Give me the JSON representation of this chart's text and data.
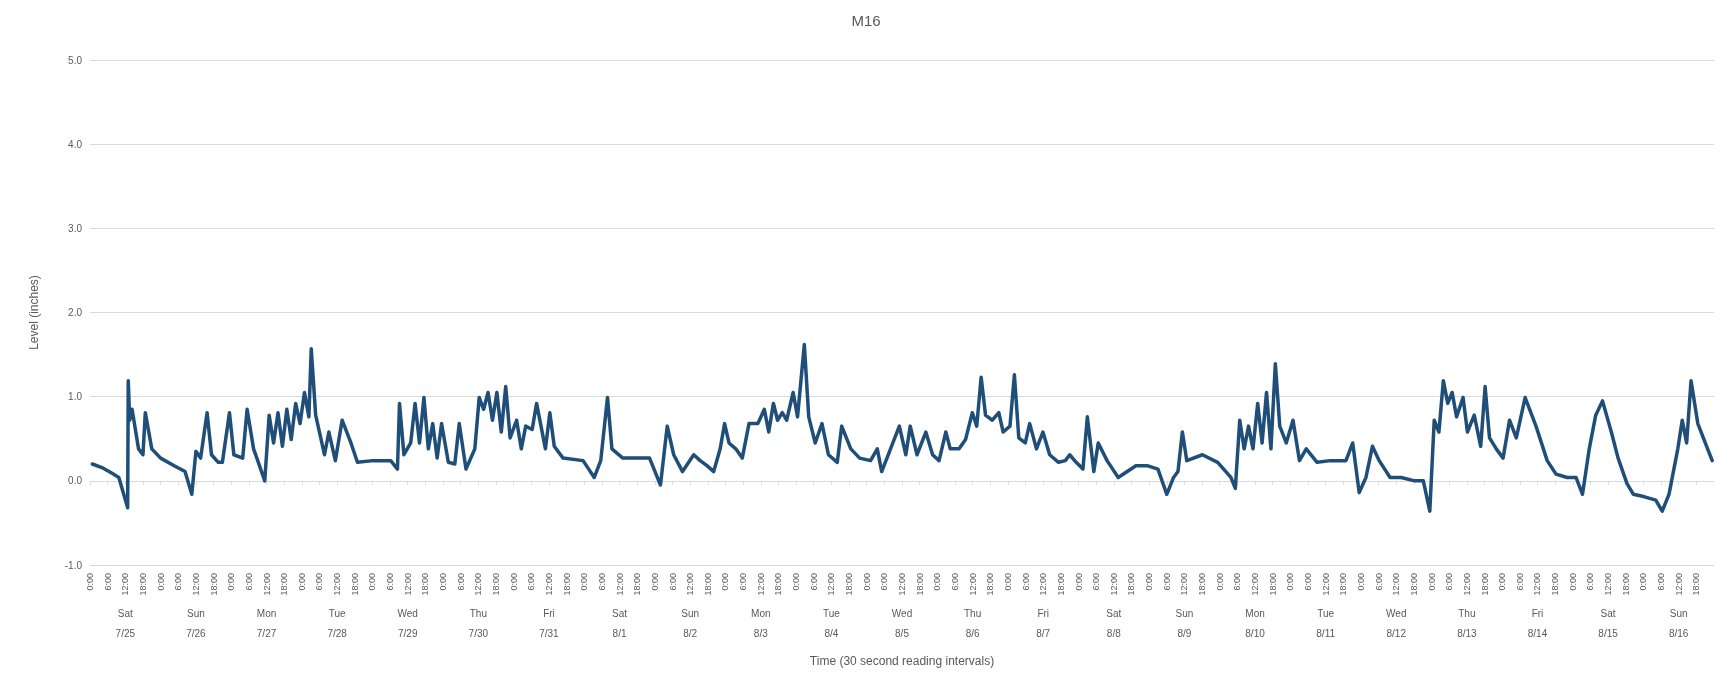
{
  "chart_data": {
    "type": "line",
    "title": "M16",
    "xlabel": "Time (30 second reading intervals)",
    "ylabel": "Level (inches)",
    "xlim": [
      "--07-25T00:00",
      "--08-17T00:00"
    ],
    "ylim": [
      -1,
      5
    ],
    "yticks": [
      {
        "value": -1,
        "label": "-1.0"
      },
      {
        "value": 0,
        "label": "0.0"
      },
      {
        "value": 1,
        "label": "1.0"
      },
      {
        "value": 2,
        "label": "2.0"
      },
      {
        "value": 3,
        "label": "3.0"
      },
      {
        "value": 4,
        "label": "4.0"
      },
      {
        "value": 5,
        "label": "5.0"
      }
    ],
    "xticks": [
      {
        "value": "--07-25T00:00",
        "label": "0:00"
      },
      {
        "value": "--07-25T06:00",
        "label": "6:00"
      },
      {
        "value": "--07-25T12:00",
        "label": "12:00"
      },
      {
        "value": "--07-25T18:00",
        "label": "18:00"
      },
      {
        "value": "--07-26T00:00",
        "label": "0:00"
      },
      {
        "value": "--07-26T06:00",
        "label": "6:00"
      },
      {
        "value": "--07-26T12:00",
        "label": "12:00"
      },
      {
        "value": "--07-26T18:00",
        "label": "18:00"
      },
      {
        "value": "--07-27T00:00",
        "label": "0:00"
      },
      {
        "value": "--07-27T06:00",
        "label": "6:00"
      },
      {
        "value": "--07-27T12:00",
        "label": "12:00"
      },
      {
        "value": "--07-27T18:00",
        "label": "18:00"
      },
      {
        "value": "--07-28T00:00",
        "label": "0:00"
      },
      {
        "value": "--07-28T06:00",
        "label": "6:00"
      },
      {
        "value": "--07-28T12:00",
        "label": "12:00"
      },
      {
        "value": "--07-28T18:00",
        "label": "18:00"
      },
      {
        "value": "--07-29T00:00",
        "label": "0:00"
      },
      {
        "value": "--07-29T06:00",
        "label": "6:00"
      },
      {
        "value": "--07-29T12:00",
        "label": "12:00"
      },
      {
        "value": "--07-29T18:00",
        "label": "18:00"
      },
      {
        "value": "--07-30T00:00",
        "label": "0:00"
      },
      {
        "value": "--07-30T06:00",
        "label": "6:00"
      },
      {
        "value": "--07-30T12:00",
        "label": "12:00"
      },
      {
        "value": "--07-30T18:00",
        "label": "18:00"
      },
      {
        "value": "--07-31T00:00",
        "label": "0:00"
      },
      {
        "value": "--07-31T06:00",
        "label": "6:00"
      },
      {
        "value": "--07-31T12:00",
        "label": "12:00"
      },
      {
        "value": "--07-31T18:00",
        "label": "18:00"
      },
      {
        "value": "--08-01T00:00",
        "label": "0:00"
      },
      {
        "value": "--08-01T06:00",
        "label": "6:00"
      },
      {
        "value": "--08-01T12:00",
        "label": "12:00"
      },
      {
        "value": "--08-01T18:00",
        "label": "18:00"
      },
      {
        "value": "--08-02T00:00",
        "label": "0:00"
      },
      {
        "value": "--08-02T06:00",
        "label": "6:00"
      },
      {
        "value": "--08-02T12:00",
        "label": "12:00"
      },
      {
        "value": "--08-02T18:00",
        "label": "18:00"
      },
      {
        "value": "--08-03T00:00",
        "label": "0:00"
      },
      {
        "value": "--08-03T06:00",
        "label": "6:00"
      },
      {
        "value": "--08-03T12:00",
        "label": "12:00"
      },
      {
        "value": "--08-03T18:00",
        "label": "18:00"
      },
      {
        "value": "--08-04T00:00",
        "label": "0:00"
      },
      {
        "value": "--08-04T06:00",
        "label": "6:00"
      },
      {
        "value": "--08-04T12:00",
        "label": "12:00"
      },
      {
        "value": "--08-04T18:00",
        "label": "18:00"
      },
      {
        "value": "--08-05T00:00",
        "label": "0:00"
      },
      {
        "value": "--08-05T06:00",
        "label": "6:00"
      },
      {
        "value": "--08-05T12:00",
        "label": "12:00"
      },
      {
        "value": "--08-05T18:00",
        "label": "18:00"
      },
      {
        "value": "--08-06T00:00",
        "label": "0:00"
      },
      {
        "value": "--08-06T06:00",
        "label": "6:00"
      },
      {
        "value": "--08-06T12:00",
        "label": "12:00"
      },
      {
        "value": "--08-06T18:00",
        "label": "18:00"
      },
      {
        "value": "--08-07T00:00",
        "label": "0:00"
      },
      {
        "value": "--08-07T06:00",
        "label": "6:00"
      },
      {
        "value": "--08-07T12:00",
        "label": "12:00"
      },
      {
        "value": "--08-07T18:00",
        "label": "18:00"
      },
      {
        "value": "--08-08T00:00",
        "label": "0:00"
      },
      {
        "value": "--08-08T06:00",
        "label": "6:00"
      },
      {
        "value": "--08-08T12:00",
        "label": "12:00"
      },
      {
        "value": "--08-08T18:00",
        "label": "18:00"
      },
      {
        "value": "--08-09T00:00",
        "label": "0:00"
      },
      {
        "value": "--08-09T06:00",
        "label": "6:00"
      },
      {
        "value": "--08-09T12:00",
        "label": "12:00"
      },
      {
        "value": "--08-09T18:00",
        "label": "18:00"
      },
      {
        "value": "--08-10T00:00",
        "label": "0:00"
      },
      {
        "value": "--08-10T06:00",
        "label": "6:00"
      },
      {
        "value": "--08-10T12:00",
        "label": "12:00"
      },
      {
        "value": "--08-10T18:00",
        "label": "18:00"
      },
      {
        "value": "--08-11T00:00",
        "label": "0:00"
      },
      {
        "value": "--08-11T06:00",
        "label": "6:00"
      },
      {
        "value": "--08-11T12:00",
        "label": "12:00"
      },
      {
        "value": "--08-11T18:00",
        "label": "18:00"
      },
      {
        "value": "--08-12T00:00",
        "label": "0:00"
      },
      {
        "value": "--08-12T06:00",
        "label": "6:00"
      },
      {
        "value": "--08-12T12:00",
        "label": "12:00"
      },
      {
        "value": "--08-12T18:00",
        "label": "18:00"
      },
      {
        "value": "--08-13T00:00",
        "label": "0:00"
      },
      {
        "value": "--08-13T06:00",
        "label": "6:00"
      },
      {
        "value": "--08-13T12:00",
        "label": "12:00"
      },
      {
        "value": "--08-13T18:00",
        "label": "18:00"
      },
      {
        "value": "--08-14T00:00",
        "label": "0:00"
      },
      {
        "value": "--08-14T06:00",
        "label": "6:00"
      },
      {
        "value": "--08-14T12:00",
        "label": "12:00"
      },
      {
        "value": "--08-14T18:00",
        "label": "18:00"
      },
      {
        "value": "--08-15T00:00",
        "label": "0:00"
      },
      {
        "value": "--08-15T06:00",
        "label": "6:00"
      },
      {
        "value": "--08-15T12:00",
        "label": "12:00"
      },
      {
        "value": "--08-15T18:00",
        "label": "18:00"
      },
      {
        "value": "--08-16T00:00",
        "label": "0:00"
      },
      {
        "value": "--08-16T06:00",
        "label": "6:00"
      },
      {
        "value": "--08-16T12:00",
        "label": "12:00"
      },
      {
        "value": "--08-16T18:00",
        "label": "18:00"
      }
    ],
    "annotations": [
      "Sat",
      "7/25",
      "Sun",
      "7/26",
      "Mon",
      "7/27",
      "Tue",
      "7/28",
      "Wed",
      "7/29",
      "Thu",
      "7/30",
      "Fri",
      "7/31",
      "Sat",
      "8/1",
      "Sun",
      "8/2",
      "Mon",
      "8/3",
      "Tue",
      "8/4",
      "Wed",
      "8/5",
      "Thu",
      "8/6",
      "Fri",
      "8/7",
      "Sat",
      "8/8",
      "Sun",
      "8/9",
      "Mon",
      "8/10",
      "Tue",
      "8/11",
      "Wed",
      "8/12",
      "Thu",
      "8/13",
      "Fri",
      "8/14",
      "Sat",
      "8/15",
      "Sun",
      "8/16"
    ],
    "grid": "y",
    "marker": "none",
    "line_style": "solid",
    "series": [
      {
        "color": "#1f4e79",
        "x": [
          "--07-25T00:48",
          "--07-25T04:30",
          "--07-25T07:30",
          "--07-25T09:48",
          "--07-25T12:48",
          "--07-25T13:00",
          "--07-25T13:30",
          "--07-25T14:18",
          "--07-25T16:30",
          "--07-25T18:00",
          "--07-25T18:48",
          "--07-25T21:00",
          "--07-26T00:00",
          "--07-26T04:36",
          "--07-26T08:18",
          "--07-26T10:36",
          "--07-26T12:00",
          "--07-26T13:36",
          "--07-26T15:48",
          "--07-26T17:18",
          "--07-26T19:36",
          "--07-26T21:00",
          "--07-26T23:24",
          "--07-27T00:54",
          "--07-27T03:54",
          "--07-27T05:24",
          "--07-27T07:36",
          "--07-27T11:24",
          "--07-27T12:54",
          "--07-27T14:24",
          "--07-27T15:54",
          "--07-27T17:24",
          "--07-27T18:54",
          "--07-27T20:24",
          "--07-27T21:54",
          "--07-27T23:24",
          "--07-28T00:54",
          "--07-28T02:24",
          "--07-28T03:12",
          "--07-28T04:42",
          "--07-28T07:42",
          "--07-28T09:12",
          "--07-28T11:24",
          "--07-28T13:42",
          "--07-28T16:42",
          "--07-28T18:54",
          "--07-29T00:12",
          "--07-29T06:12",
          "--07-29T08:30",
          "--07-29T09:12",
          "--07-29T10:42",
          "--07-29T13:00",
          "--07-29T14:30",
          "--07-29T16:00",
          "--07-29T17:30",
          "--07-29T19:00",
          "--07-29T20:30",
          "--07-29T22:00",
          "--07-29T23:30",
          "--07-30T01:48",
          "--07-30T04:00",
          "--07-30T05:30",
          "--07-30T07:48",
          "--07-30T10:48",
          "--07-30T12:18",
          "--07-30T13:48",
          "--07-30T15:18",
          "--07-30T16:48",
          "--07-30T18:18",
          "--07-30T19:48",
          "--07-30T21:18",
          "--07-30T22:48",
          "--07-31T01:00",
          "--07-31T02:36",
          "--07-31T04:06",
          "--07-31T06:18",
          "--07-31T07:48",
          "--07-31T10:48",
          "--07-31T12:18",
          "--07-31T13:48",
          "--07-31T16:48",
          "--07-31T23:36",
          "--08-01T03:24",
          "--08-01T05:36",
          "--08-01T07:54",
          "--08-01T09:24",
          "--08-01T13:06",
          "--08-01T22:12",
          "--08-02T01:54",
          "--08-02T04:12",
          "--08-02T06:24",
          "--08-02T09:24",
          "--08-02T13:12",
          "--08-02T15:24",
          "--08-02T17:42",
          "--08-02T20:00",
          "--08-02T22:12",
          "--08-02T23:42",
          "--08-03T01:12",
          "--08-03T03:30",
          "--08-03T05:42",
          "--08-03T08:00",
          "--08-03T11:00",
          "--08-03T13:12",
          "--08-03T14:42",
          "--08-03T16:18",
          "--08-03T17:42",
          "--08-03T19:18",
          "--08-03T20:48",
          "--08-03T23:00",
          "--08-04T00:30",
          "--08-04T02:48",
          "--08-04T04:18",
          "--08-04T06:30",
          "--08-04T08:48",
          "--08-04T11:00",
          "--08-04T14:00",
          "--08-04T15:30",
          "--08-04T18:36",
          "--08-04T21:36",
          "--08-05T01:18",
          "--08-05T03:36",
          "--08-05T05:06",
          "--08-05T08:06",
          "--08-05T11:06",
          "--08-05T13:18",
          "--08-05T14:48",
          "--08-05T17:06",
          "--08-05T20:06",
          "--08-05T22:24",
          "--08-06T00:36",
          "--08-06T02:54",
          "--08-06T04:24",
          "--08-06T07:24",
          "--08-06T09:36",
          "--08-06T11:54",
          "--08-06T13:24",
          "--08-06T14:54",
          "--08-06T16:24",
          "--08-06T18:42",
          "--08-06T20:54",
          "--08-06T22:24",
          "--08-07T00:42",
          "--08-07T02:12",
          "--08-07T03:42",
          "--08-07T05:54",
          "--08-07T07:24",
          "--08-07T09:42",
          "--08-07T11:54",
          "--08-07T14:12",
          "--08-07T17:12",
          "--08-07T19:30",
          "--08-07T21:00",
          "--08-07T23:12",
          "--08-08T01:30",
          "--08-08T03:00",
          "--08-08T05:12",
          "--08-08T06:42",
          "--08-08T09:42",
          "--08-08T13:30",
          "--08-08T19:30",
          "--08-08T23:18",
          "--08-09T03:00",
          "--08-09T06:00",
          "--08-09T08:18",
          "--08-09T09:48",
          "--08-09T11:18",
          "--08-09T12:48",
          "--08-09T18:06",
          "--08-09T23:18",
          "--08-10T03:48",
          "--08-10T05:18",
          "--08-10T06:48",
          "--08-10T08:18",
          "--08-10T09:48",
          "--08-10T11:18",
          "--08-10T12:54",
          "--08-10T14:24",
          "--08-10T15:54",
          "--08-10T17:24",
          "--08-10T18:54",
          "--08-10T20:24",
          "--08-10T22:36",
          "--08-11T00:54",
          "--08-11T03:06",
          "--08-11T05:24",
          "--08-11T09:06",
          "--08-11T13:36",
          "--08-11T18:54",
          "--08-11T21:12",
          "--08-11T23:24",
          "--08-12T01:42",
          "--08-12T03:54",
          "--08-12T06:12",
          "--08-12T09:54",
          "--08-12T13:42",
          "--08-12T18:12",
          "--08-12T21:12",
          "--08-12T23:24",
          "--08-13T00:54",
          "--08-13T02:30",
          "--08-13T04:00",
          "--08-13T05:30",
          "--08-13T07:00",
          "--08-13T08:30",
          "--08-13T10:42",
          "--08-13T12:12",
          "--08-13T14:30",
          "--08-13T16:42",
          "--08-13T18:12",
          "--08-13T19:42",
          "--08-13T22:00",
          "--08-14T00:18",
          "--08-14T02:30",
          "--08-14T04:48",
          "--08-14T07:48",
          "--08-14T11:30",
          "--08-14T15:18",
          "--08-14T18:18",
          "--08-14T22:06",
          "--08-15T01:06",
          "--08-15T03:18",
          "--08-15T05:36",
          "--08-15T07:48",
          "--08-15T10:06",
          "--08-15T13:06",
          "--08-15T15:24",
          "--08-15T18:24",
          "--08-15T20:36",
          "--08-16T00:24",
          "--08-16T04:12",
          "--08-16T06:24",
          "--08-16T08:42",
          "--08-16T11:42",
          "--08-16T13:12",
          "--08-16T14:42",
          "--08-16T16:12",
          "--08-16T18:30",
          "--08-16T21:30",
          "--08-16T23:24"
        ],
        "values": [
          0.2,
          0.15,
          0.09,
          0.04,
          -0.32,
          1.19,
          0.72,
          0.85,
          0.38,
          0.31,
          0.81,
          0.38,
          0.27,
          0.18,
          0.11,
          -0.16,
          0.35,
          0.27,
          0.81,
          0.31,
          0.22,
          0.22,
          0.81,
          0.31,
          0.27,
          0.85,
          0.38,
          0.0,
          0.78,
          0.45,
          0.81,
          0.41,
          0.85,
          0.49,
          0.92,
          0.68,
          1.05,
          0.76,
          1.57,
          0.78,
          0.31,
          0.58,
          0.24,
          0.72,
          0.45,
          0.22,
          0.24,
          0.24,
          0.14,
          0.92,
          0.31,
          0.45,
          0.92,
          0.45,
          0.99,
          0.38,
          0.68,
          0.27,
          0.68,
          0.22,
          0.2,
          0.68,
          0.14,
          0.38,
          0.99,
          0.85,
          1.05,
          0.72,
          1.05,
          0.58,
          1.12,
          0.51,
          0.72,
          0.38,
          0.65,
          0.61,
          0.92,
          0.38,
          0.81,
          0.41,
          0.27,
          0.24,
          0.04,
          0.24,
          0.99,
          0.38,
          0.27,
          0.27,
          -0.05,
          0.65,
          0.31,
          0.11,
          0.31,
          0.24,
          0.18,
          0.11,
          0.38,
          0.68,
          0.45,
          0.38,
          0.27,
          0.68,
          0.68,
          0.85,
          0.58,
          0.92,
          0.72,
          0.81,
          0.72,
          1.05,
          0.76,
          1.62,
          0.76,
          0.45,
          0.68,
          0.31,
          0.22,
          0.65,
          0.38,
          0.27,
          0.24,
          0.38,
          0.11,
          0.38,
          0.65,
          0.31,
          0.65,
          0.31,
          0.58,
          0.31,
          0.24,
          0.58,
          0.38,
          0.38,
          0.49,
          0.81,
          0.65,
          1.23,
          0.78,
          0.72,
          0.81,
          0.58,
          0.65,
          1.26,
          0.51,
          0.45,
          0.68,
          0.38,
          0.58,
          0.31,
          0.22,
          0.24,
          0.31,
          0.22,
          0.14,
          0.76,
          0.11,
          0.45,
          0.24,
          0.04,
          0.18,
          0.18,
          0.14,
          -0.16,
          0.04,
          0.11,
          0.58,
          0.24,
          0.31,
          0.22,
          0.04,
          -0.09,
          0.72,
          0.38,
          0.65,
          0.38,
          0.92,
          0.45,
          1.05,
          0.38,
          1.39,
          0.65,
          0.45,
          0.72,
          0.24,
          0.38,
          0.22,
          0.24,
          0.24,
          0.45,
          -0.14,
          0.04,
          0.41,
          0.24,
          0.04,
          0.04,
          0.0,
          0.0,
          -0.36,
          0.72,
          0.58,
          1.19,
          0.92,
          1.05,
          0.76,
          0.99,
          0.58,
          0.78,
          0.41,
          1.12,
          0.51,
          0.38,
          0.27,
          0.72,
          0.51,
          0.99,
          0.65,
          0.24,
          0.08,
          0.04,
          0.04,
          -0.16,
          0.38,
          0.78,
          0.95,
          0.58,
          0.27,
          -0.03,
          -0.16,
          -0.19,
          -0.23,
          -0.36,
          -0.16,
          0.38,
          0.72,
          0.45,
          1.19,
          0.68,
          0.41,
          0.24
        ]
      }
    ]
  }
}
